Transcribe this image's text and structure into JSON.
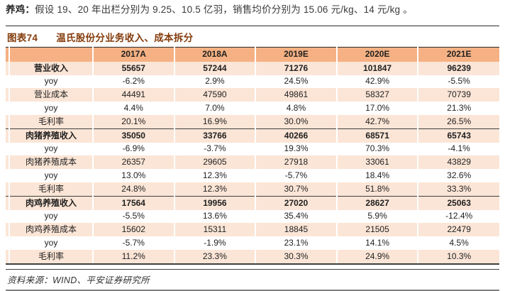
{
  "intro": {
    "label": "养鸡：",
    "text": "假设 19、20 年出栏分别为 9.25、10.5 亿羽，销售均价分别为 15.06 元/kg、14 元/kg 。"
  },
  "figure": {
    "label": "图表74",
    "title": "温氏股份分业务收入、成本拆分",
    "source": "资料来源：WIND、平安证券研究所"
  },
  "colors": {
    "header_bg": "#F5B183",
    "shaded_row_bg": "#FBE5D6",
    "caption_text": "#843C0C",
    "section_border": "#3F3F3F"
  },
  "chart_data": {
    "type": "table",
    "columns": [
      "",
      "2017A",
      "2018A",
      "2019E",
      "2020E",
      "2021E"
    ],
    "rows": [
      {
        "label": "营业收入",
        "values": [
          "55657",
          "57244",
          "71276",
          "101847",
          "96239"
        ],
        "bold": true,
        "shaded": true,
        "section": false
      },
      {
        "label": "yoy",
        "values": [
          "-6.2%",
          "2.9%",
          "24.5%",
          "42.9%",
          "-5.5%"
        ],
        "bold": false,
        "shaded": false,
        "section": false
      },
      {
        "label": "营业成本",
        "values": [
          "44491",
          "47590",
          "49861",
          "58327",
          "70739"
        ],
        "bold": false,
        "shaded": true,
        "section": false
      },
      {
        "label": "yoy",
        "values": [
          "4.4%",
          "7.0%",
          "4.8%",
          "17.0%",
          "21.3%"
        ],
        "bold": false,
        "shaded": false,
        "section": false
      },
      {
        "label": "毛利率",
        "values": [
          "20.1%",
          "16.9%",
          "30.0%",
          "42.7%",
          "26.5%"
        ],
        "bold": false,
        "shaded": true,
        "section": false
      },
      {
        "label": "肉猪养殖收入",
        "values": [
          "35050",
          "33766",
          "40266",
          "68571",
          "65743"
        ],
        "bold": true,
        "shaded": true,
        "section": true
      },
      {
        "label": "yoy",
        "values": [
          "-6.9%",
          "-3.7%",
          "19.3%",
          "70.3%",
          "-4.1%"
        ],
        "bold": false,
        "shaded": false,
        "section": false
      },
      {
        "label": "肉猪养殖成本",
        "values": [
          "26357",
          "29605",
          "27918",
          "33061",
          "43829"
        ],
        "bold": false,
        "shaded": true,
        "section": false
      },
      {
        "label": "yoy",
        "values": [
          "13.0%",
          "12.3%",
          "-5.7%",
          "18.4%",
          "32.6%"
        ],
        "bold": false,
        "shaded": false,
        "section": false
      },
      {
        "label": "毛利率",
        "values": [
          "24.8%",
          "12.3%",
          "30.7%",
          "51.8%",
          "33.3%"
        ],
        "bold": false,
        "shaded": true,
        "section": false
      },
      {
        "label": "肉鸡养殖收入",
        "values": [
          "17564",
          "19956",
          "27020",
          "28627",
          "25063"
        ],
        "bold": true,
        "shaded": true,
        "section": true
      },
      {
        "label": "yoy",
        "values": [
          "-5.5%",
          "13.6%",
          "35.4%",
          "5.9%",
          "-12.4%"
        ],
        "bold": false,
        "shaded": false,
        "section": false
      },
      {
        "label": "肉鸡养殖成本",
        "values": [
          "15602",
          "15311",
          "18845",
          "21505",
          "22479"
        ],
        "bold": false,
        "shaded": true,
        "section": false
      },
      {
        "label": "yoy",
        "values": [
          "-5.7%",
          "-1.9%",
          "23.1%",
          "14.1%",
          "4.5%"
        ],
        "bold": false,
        "shaded": false,
        "section": false
      },
      {
        "label": "毛利率",
        "values": [
          "11.2%",
          "23.3%",
          "30.3%",
          "24.9%",
          "10.3%"
        ],
        "bold": false,
        "shaded": true,
        "section": false
      }
    ]
  }
}
